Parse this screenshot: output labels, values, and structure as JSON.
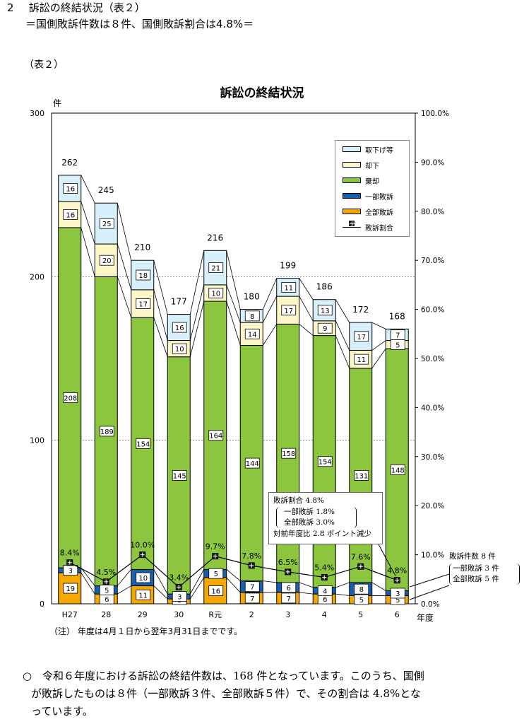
{
  "heading": {
    "number": "2",
    "title": "訴訟の終結状況（表２）",
    "subtitle": "＝国側敗訴件数は８件、国側敗訴割合は4.8%＝"
  },
  "table_label": "（表２）",
  "chart_data": {
    "type": "bar",
    "title": "訴訟の終結状況",
    "ylabel": "件",
    "xlabel": "年度",
    "ylim": [
      0,
      300
    ],
    "y_ticks": [
      "0",
      "100",
      "200",
      "300"
    ],
    "y2lim": [
      0,
      100
    ],
    "y2_ticks": [
      "0.0%",
      "10.0%",
      "20.0%",
      "30.0%",
      "40.0%",
      "50.0%",
      "60.0%",
      "70.0%",
      "80.0%",
      "90.0%",
      "100.0%"
    ],
    "categories": [
      "H27",
      "28",
      "29",
      "30",
      "R元",
      "2",
      "3",
      "4",
      "5",
      "6"
    ],
    "series": [
      {
        "name": "全部敗訴",
        "color": "#f5a800",
        "values": [
          19,
          6,
          11,
          3,
          16,
          7,
          7,
          6,
          5,
          5
        ]
      },
      {
        "name": "一部敗訴",
        "color": "#1760b0",
        "values": [
          3,
          5,
          10,
          3,
          5,
          7,
          6,
          4,
          8,
          3
        ]
      },
      {
        "name": "棄却",
        "color": "#8cc63f",
        "values": [
          208,
          189,
          154,
          145,
          164,
          144,
          158,
          154,
          131,
          148
        ]
      },
      {
        "name": "却下",
        "color": "#fdf6c8",
        "values": [
          16,
          20,
          17,
          10,
          10,
          14,
          17,
          9,
          11,
          5
        ]
      },
      {
        "name": "取下げ等",
        "color": "#d7f0fb",
        "values": [
          16,
          25,
          18,
          16,
          21,
          8,
          11,
          13,
          17,
          7
        ]
      }
    ],
    "totals": [
      262,
      245,
      210,
      177,
      216,
      180,
      199,
      186,
      172,
      168
    ],
    "rate": {
      "name": "敗訴割合",
      "values": [
        8.4,
        4.5,
        10.0,
        3.4,
        9.7,
        7.8,
        6.5,
        5.4,
        7.6,
        4.8
      ],
      "labels": [
        "8.4%",
        "4.5%",
        "10.0%",
        "3.4%",
        "9.7%",
        "7.8%",
        "6.5%",
        "5.4%",
        "7.6%",
        "4.8%"
      ]
    },
    "legend": [
      "取下げ等",
      "却下",
      "棄却",
      "一部敗訴",
      "全部敗訴",
      "敗訴割合"
    ]
  },
  "callout_left": {
    "line1": "敗訴割合 4.8%",
    "line2": "一部敗訴 1.8%",
    "line3": "全部敗訴 3.0%",
    "line4": "対前年度比 2.8 ポイント減少"
  },
  "callout_right": {
    "line1": "敗訴件数 8 件",
    "line2": "一部敗訴 3 件",
    "line3": "全部敗訴 5 件"
  },
  "note": "（注） 年度は4月１日から翌年3月31日までです。",
  "paragraph": {
    "marker": "○",
    "line1": "令和６年度における訴訟の終結件数は、168 件となっています。このうち、国側",
    "line2": "が敗訴したものは８件（一部敗訴３件、全部敗訴５件）で、その割合は 4.8%とな",
    "line3": "っています。"
  },
  "colors": {
    "abandon": "#f5a800",
    "partial": "#1760b0",
    "dismissed": "#8cc63f",
    "rejected": "#fdf6c8",
    "withdrawn": "#d7f0fb"
  }
}
